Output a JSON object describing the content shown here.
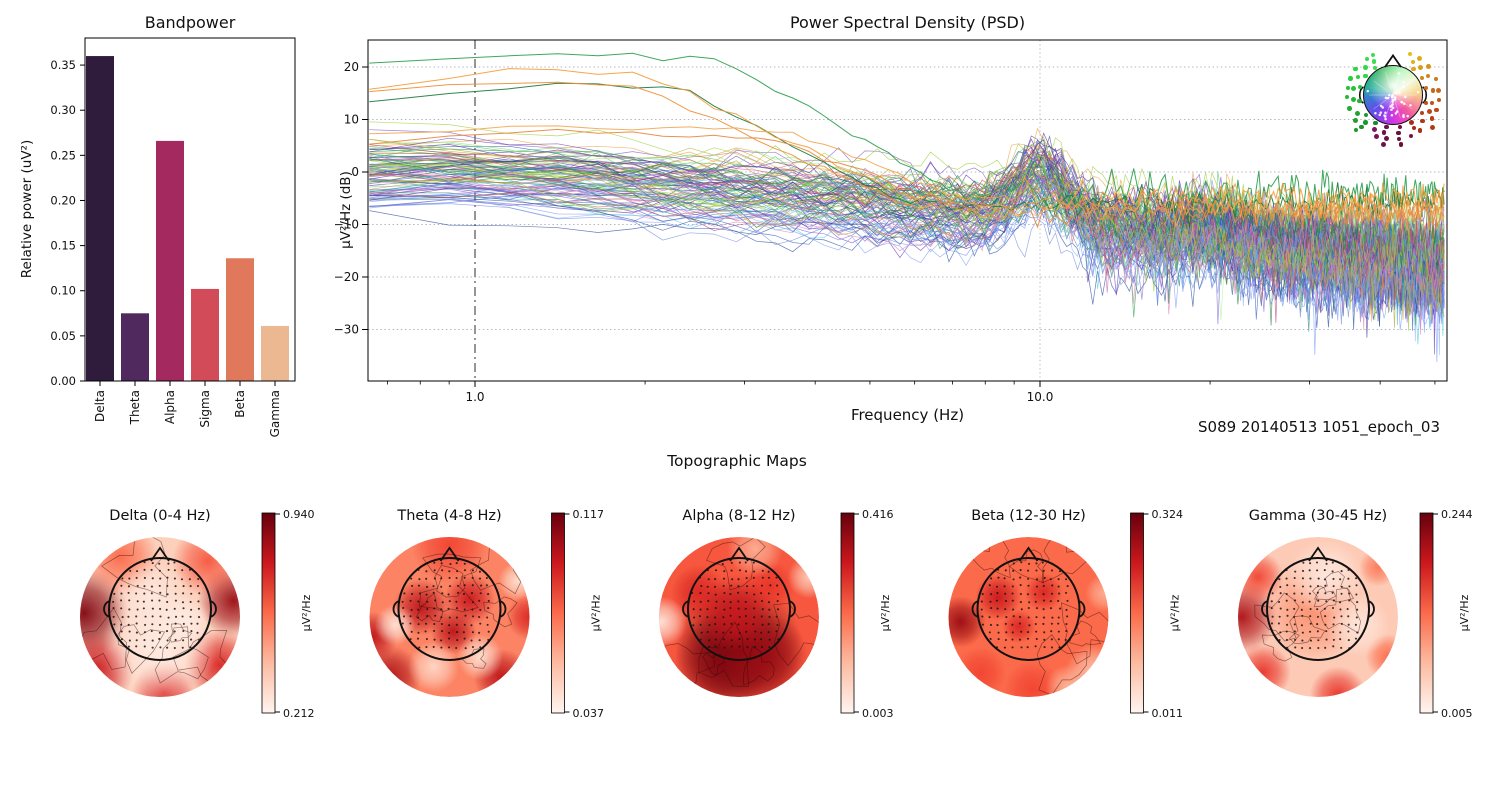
{
  "chart_data": [
    {
      "type": "bar",
      "title": "Bandpower",
      "ylabel": "Relative power (uV²)",
      "categories": [
        "Delta",
        "Theta",
        "Alpha",
        "Sigma",
        "Beta",
        "Gamma"
      ],
      "values": [
        0.36,
        0.075,
        0.266,
        0.102,
        0.136,
        0.061
      ],
      "bar_colors": [
        "#2f1c3c",
        "#50295f",
        "#a3295f",
        "#d24b58",
        "#e0795c",
        "#ecb891"
      ],
      "yticks": [
        0.0,
        0.05,
        0.1,
        0.15,
        0.2,
        0.25,
        0.3,
        0.35
      ],
      "ylim": [
        0,
        0.38
      ]
    },
    {
      "type": "line",
      "title": "Power Spectral Density (PSD)",
      "xlabel": "Frequency (Hz)",
      "ylabel": "µV²/Hz (dB)",
      "annotation": "S089 20140513 1051_epoch_03",
      "xscale": "log",
      "xlim": [
        0.65,
        52
      ],
      "ylim": [
        -40,
        25.1
      ],
      "yticks": [
        20,
        10,
        0,
        -10,
        -20,
        -30
      ],
      "xticks": [
        1.0,
        10.0
      ],
      "xtick_labels": [
        "1.0",
        "10.0"
      ],
      "minor_xticks": [
        0.7,
        0.8,
        0.9,
        2,
        3,
        4,
        5,
        6,
        7,
        8,
        9,
        20,
        30,
        40,
        50
      ],
      "vline_dashdot_hz": 1.0,
      "vline_dotted_hz": 10.0,
      "alpha_peak_hz": 10,
      "n_channels": 108,
      "freq_step_hz": 0.25,
      "palette": [
        [
          "#5a2ea6",
          5,
          0.5,
          5
        ],
        [
          "#6a3db8",
          6,
          0.5,
          5
        ],
        [
          "#7e57c9",
          6,
          0,
          4
        ],
        [
          "#48309a",
          4,
          0,
          5
        ],
        [
          "#8468d9",
          4,
          -0.5,
          4
        ],
        [
          "#3a5fc8",
          5,
          -2,
          3
        ],
        [
          "#2b4fa0",
          3,
          -2.5,
          3
        ],
        [
          "#6f8fe0",
          5,
          -3.5,
          2.5
        ],
        [
          "#93b4f0",
          6,
          -5,
          2
        ],
        [
          "#7e9cf5",
          4,
          -4.5,
          2
        ],
        [
          "#2d9e4f",
          5,
          1.5,
          2
        ],
        [
          "#1f7a3c",
          4,
          1,
          2
        ],
        [
          "#57c163",
          4,
          2,
          2
        ],
        [
          "#8ee07e",
          5,
          2,
          1.5
        ],
        [
          "#b4f09a",
          3,
          2,
          1
        ],
        [
          "#9acd32",
          3,
          1,
          1.5
        ],
        [
          "#c9d94e",
          2,
          1.5,
          1
        ],
        [
          "#b8a832",
          2,
          0.5,
          1.5
        ],
        [
          "#ef9c3f",
          3,
          0.5,
          2
        ],
        [
          "#f3b258",
          2,
          1,
          1.5
        ],
        [
          "#d45f9e",
          4,
          -0.5,
          2.5
        ],
        [
          "#e284b8",
          3,
          -1,
          2
        ],
        [
          "#bb3f7e",
          3,
          0,
          3
        ],
        [
          "#c74a5e",
          3,
          -0.5,
          2.5
        ],
        [
          "#d46a6a",
          2,
          -1,
          2
        ],
        [
          "#2aa7c7",
          3,
          -2.5,
          2
        ],
        [
          "#55c8e0",
          2,
          -3,
          1.5
        ],
        [
          "#2e8b8b",
          2,
          -1.5,
          2
        ]
      ],
      "outliers": [
        {
          "color": "#2fa050",
          "start": 20.8,
          "peak": 22.6,
          "fp": 1.6,
          "fb": 2.7,
          "slope": 62,
          "floor": -4,
          "spike": 2.0
        },
        {
          "color": "#1f7a3c",
          "start": 13.8,
          "peak": 16.9,
          "fp": 1.5,
          "fb": 2.3,
          "slope": 55,
          "floor": -6,
          "spike": 1.5
        },
        {
          "color": "#f59d3d",
          "start": 16.2,
          "peak": 19.4,
          "fp": 1.15,
          "fb": 2.0,
          "slope": 50,
          "floor": -5,
          "spike": 1.3
        },
        {
          "color": "#ef8f35",
          "start": 15.5,
          "peak": 17.3,
          "fp": 1.1,
          "fb": 1.9,
          "slope": 47,
          "floor": -6.5,
          "spike": 1.2
        },
        {
          "color": "#f2a852",
          "start": 6.8,
          "peak": 8.7,
          "fp": 1.5,
          "fb": 3.6,
          "slope": 42,
          "floor": -7,
          "spike": 1.1
        },
        {
          "color": "#e8893f",
          "start": 5.9,
          "peak": 7.4,
          "fp": 1.4,
          "fb": 3.3,
          "slope": 40,
          "floor": -8,
          "spike": 1.1
        }
      ],
      "inset": "sensor-location color wheel head"
    },
    {
      "type": "heatmap",
      "section_title": "Topographic Maps",
      "unit_label": "µV²/Hz",
      "colormap": "Reds",
      "maps": [
        {
          "title": "Delta (0-4 Hz)",
          "vmax": "0.940",
          "vmin": "0.212",
          "base": 0.18,
          "hot": [
            [
              -0.95,
              -0.05,
              0.35,
              0.95
            ],
            [
              0.92,
              -0.2,
              0.28,
              0.9
            ],
            [
              -0.8,
              0.65,
              0.3,
              0.75
            ],
            [
              0.75,
              0.6,
              0.28,
              0.7
            ],
            [
              0.05,
              0.95,
              0.25,
              0.7
            ],
            [
              -0.5,
              -0.75,
              0.3,
              0.5
            ],
            [
              0.6,
              -0.7,
              0.28,
              0.55
            ]
          ],
          "light": [
            [
              0,
              0.35,
              0.45,
              0.05
            ],
            [
              -0.1,
              -0.25,
              0.3,
              0.08
            ],
            [
              0.3,
              0.05,
              0.2,
              0.06
            ]
          ]
        },
        {
          "title": "Theta (4-8 Hz)",
          "vmax": "0.117",
          "vmin": "0.037",
          "base": 0.42,
          "hot": [
            [
              -0.35,
              -0.12,
              0.22,
              0.8
            ],
            [
              0.25,
              -0.22,
              0.2,
              0.75
            ],
            [
              0.05,
              0.18,
              0.18,
              0.8
            ],
            [
              -0.75,
              0.75,
              0.25,
              0.85
            ],
            [
              0.65,
              0.75,
              0.22,
              0.8
            ],
            [
              -0.97,
              0.25,
              0.2,
              0.8
            ],
            [
              1.0,
              0,
              0.18,
              0.7
            ],
            [
              0,
              -0.9,
              0.3,
              0.6
            ]
          ],
          "light": [
            [
              -0.68,
              0.1,
              0.16,
              0.1
            ],
            [
              0.38,
              0.5,
              0.18,
              0.12
            ],
            [
              -0.2,
              0.62,
              0.2,
              0.15
            ],
            [
              0.85,
              -0.45,
              0.15,
              0.12
            ]
          ]
        },
        {
          "title": "Alpha (8-12 Hz)",
          "vmax": "0.416",
          "vmin": "0.003",
          "base": 0.55,
          "hot": [
            [
              0,
              0.38,
              0.5,
              1.0
            ],
            [
              -0.2,
              0.55,
              0.38,
              0.95
            ],
            [
              0.3,
              0.5,
              0.35,
              0.9
            ],
            [
              -0.5,
              -0.3,
              0.22,
              0.7
            ],
            [
              0.38,
              -0.38,
              0.2,
              0.65
            ],
            [
              -0.05,
              -0.05,
              0.3,
              0.75
            ]
          ],
          "light": [
            [
              -0.97,
              0.06,
              0.2,
              0.08
            ],
            [
              0.88,
              -0.5,
              0.17,
              0.18
            ],
            [
              0.2,
              -0.85,
              0.22,
              0.28
            ]
          ]
        },
        {
          "title": "Beta (12-30 Hz)",
          "vmax": "0.324",
          "vmin": "0.011",
          "base": 0.5,
          "hot": [
            [
              -0.85,
              0.06,
              0.2,
              0.9
            ],
            [
              -0.38,
              -0.25,
              0.18,
              0.75
            ],
            [
              0.19,
              -0.31,
              0.15,
              0.7
            ],
            [
              -0.12,
              0.12,
              0.13,
              0.7
            ],
            [
              0.05,
              0.9,
              0.22,
              0.6
            ],
            [
              -0.6,
              0.7,
              0.2,
              0.6
            ]
          ],
          "light": [
            [
              0.81,
              0.69,
              0.22,
              0.22
            ],
            [
              0.5,
              0.88,
              0.18,
              0.26
            ],
            [
              0.95,
              -0.3,
              0.15,
              0.28
            ]
          ]
        },
        {
          "title": "Gamma (30-45 Hz)",
          "vmax": "0.244",
          "vmin": "0.005",
          "base": 0.2,
          "hot": [
            [
              -0.95,
              0,
              0.28,
              0.85
            ],
            [
              -0.75,
              -0.5,
              0.2,
              0.6
            ],
            [
              -0.69,
              0.69,
              0.22,
              0.65
            ],
            [
              0.25,
              0.97,
              0.22,
              0.65
            ],
            [
              0.88,
              0.5,
              0.18,
              0.5
            ],
            [
              0.75,
              -0.62,
              0.15,
              0.45
            ],
            [
              -0.06,
              -0.06,
              0.38,
              0.38
            ]
          ],
          "light": [
            [
              0.1,
              -0.5,
              0.3,
              0.07
            ],
            [
              0.5,
              0.1,
              0.25,
              0.09
            ]
          ]
        }
      ]
    }
  ]
}
